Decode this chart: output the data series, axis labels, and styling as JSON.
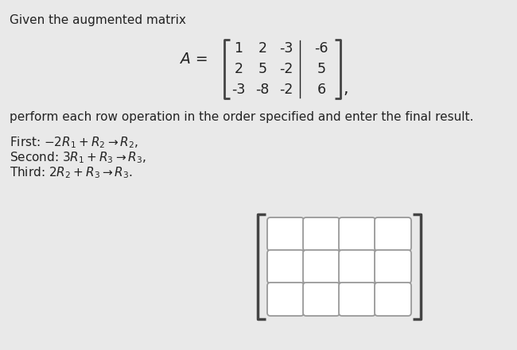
{
  "background_color": "#e9e9e9",
  "title_text": "Given the augmented matrix",
  "matrix_label": "A =",
  "matrix": [
    [
      1,
      2,
      -3,
      -6
    ],
    [
      2,
      5,
      -2,
      5
    ],
    [
      -3,
      -8,
      -2,
      6
    ]
  ],
  "perform_text": "perform each row operation in the order specified and enter the final result.",
  "ops": [
    "First: $-2R_1 + R_2 \\rightarrow R_2,$",
    "Second: $3R_1 + R_3 \\rightarrow R_3,$",
    "Third: $2R_2 + R_3 \\rightarrow R_3.$"
  ],
  "grid_rows": 3,
  "grid_cols": 4,
  "box_color": "#ffffff",
  "box_edge_color": "#999999",
  "bracket_color": "#444444",
  "text_color": "#222222",
  "font_size_main": 11.0,
  "font_size_matrix": 12.5,
  "figsize": [
    6.5,
    4.41
  ],
  "dpi": 100
}
